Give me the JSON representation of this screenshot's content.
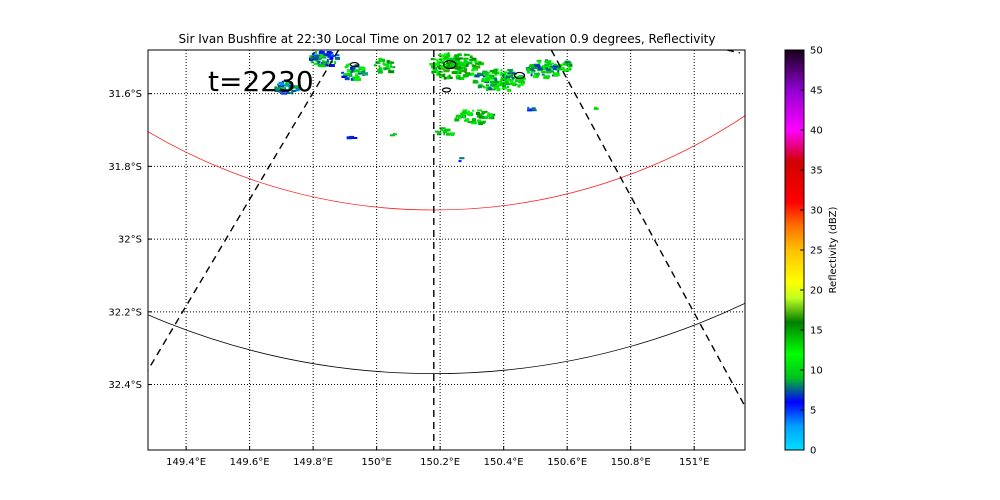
{
  "title": "Sir Ivan Bushfire at 22:30 Local Time on 2017 02 12 at elevation 0.9 degrees, Reflectivity",
  "time_label": "t=2230",
  "map": {
    "lon_range": [
      149.28,
      151.16
    ],
    "lat_range": [
      -32.58,
      -31.48
    ],
    "lon_ticks": [
      149.4,
      149.6,
      149.8,
      150.0,
      150.2,
      150.4,
      150.6,
      150.8,
      151.0
    ],
    "lon_tick_labels": [
      "149.4°E",
      "149.6°E",
      "149.8°E",
      "150°E",
      "150.2°E",
      "150.4°E",
      "150.6°E",
      "150.8°E",
      "151°E"
    ],
    "lat_ticks": [
      -31.6,
      -31.8,
      -32.0,
      -32.2,
      -32.4
    ],
    "lat_tick_labels": [
      "31.6°S",
      "31.8°S",
      "32°S",
      "32.2°S",
      "32.4°S"
    ],
    "grid": true,
    "radar_center": {
      "lon": 150.18,
      "lat": -30.38
    },
    "range_rings": [
      {
        "color": "#ff2020",
        "bottom_lat": -31.92
      },
      {
        "color": "#000000",
        "bottom_lat": -32.37
      }
    ]
  },
  "colorbar": {
    "label": "Reflectivity (dBZ)",
    "min": 0,
    "max": 50,
    "ticks": [
      "0",
      "5",
      "10",
      "15",
      "20",
      "25",
      "30",
      "35",
      "40",
      "45",
      "50"
    ],
    "stops": [
      [
        0,
        "#00e0ff"
      ],
      [
        3,
        "#00a0ff"
      ],
      [
        6,
        "#0000ff"
      ],
      [
        9,
        "#00c020"
      ],
      [
        12,
        "#00ff00"
      ],
      [
        16,
        "#008000"
      ],
      [
        19,
        "#c0ff20"
      ],
      [
        21,
        "#ffff00"
      ],
      [
        25,
        "#ffc000"
      ],
      [
        28,
        "#ff7000"
      ],
      [
        31,
        "#ff0000"
      ],
      [
        36,
        "#d00000"
      ],
      [
        40,
        "#ff00ff"
      ],
      [
        45,
        "#9000d0"
      ],
      [
        50,
        "#180018"
      ]
    ]
  },
  "echo_clusters": [
    {
      "lon": 149.83,
      "lat": -31.5,
      "rx": 14,
      "ry": 8,
      "dbz": 8,
      "n": 55
    },
    {
      "lon": 149.71,
      "lat": -31.58,
      "rx": 12,
      "ry": 7,
      "dbz": 7,
      "n": 40
    },
    {
      "lon": 149.92,
      "lat": -31.54,
      "rx": 12,
      "ry": 9,
      "dbz": 9,
      "n": 45
    },
    {
      "lon": 150.02,
      "lat": -31.52,
      "rx": 10,
      "ry": 8,
      "dbz": 12,
      "n": 30
    },
    {
      "lon": 150.24,
      "lat": -31.52,
      "rx": 26,
      "ry": 13,
      "dbz": 13,
      "n": 150
    },
    {
      "lon": 150.38,
      "lat": -31.56,
      "rx": 26,
      "ry": 11,
      "dbz": 11,
      "n": 130
    },
    {
      "lon": 150.52,
      "lat": -31.53,
      "rx": 16,
      "ry": 9,
      "dbz": 10,
      "n": 70
    },
    {
      "lon": 150.3,
      "lat": -31.66,
      "rx": 20,
      "ry": 7,
      "dbz": 12,
      "n": 45
    },
    {
      "lon": 150.21,
      "lat": -31.7,
      "rx": 9,
      "ry": 5,
      "dbz": 13,
      "n": 14
    },
    {
      "lon": 150.59,
      "lat": -31.52,
      "rx": 8,
      "ry": 5,
      "dbz": 12,
      "n": 14
    },
    {
      "lon": 149.91,
      "lat": -31.72,
      "rx": 4,
      "ry": 2,
      "dbz": 7,
      "n": 4
    },
    {
      "lon": 150.26,
      "lat": -31.78,
      "rx": 3,
      "ry": 2,
      "dbz": 8,
      "n": 3
    },
    {
      "lon": 150.48,
      "lat": -31.64,
      "rx": 4,
      "ry": 2,
      "dbz": 7,
      "n": 4
    },
    {
      "lon": 150.68,
      "lat": -31.64,
      "rx": 3,
      "ry": 2,
      "dbz": 12,
      "n": 3
    },
    {
      "lon": 150.05,
      "lat": -31.71,
      "rx": 3,
      "ry": 2,
      "dbz": 13,
      "n": 3
    }
  ]
}
